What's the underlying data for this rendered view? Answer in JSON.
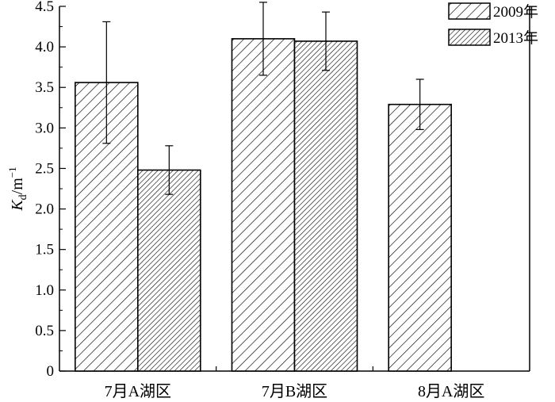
{
  "chart_data": {
    "type": "bar",
    "categories": [
      "7月A湖区",
      "7月B湖区",
      "8月A湖区"
    ],
    "series": [
      {
        "name": "2009年",
        "values": [
          3.56,
          4.1,
          3.29
        ],
        "errors": [
          0.75,
          0.45,
          0.31
        ],
        "pattern": "sparse-diagonal"
      },
      {
        "name": "2013年",
        "values": [
          2.48,
          4.07,
          null
        ],
        "errors": [
          0.3,
          0.36,
          null
        ],
        "pattern": "dense-diagonal"
      }
    ],
    "ylabel": {
      "main": "K",
      "sub": "d",
      "unit": "/m",
      "sup": "−1"
    },
    "ylim": [
      0,
      4.5
    ],
    "yticks": [
      "0",
      "0.5",
      "1.0",
      "1.5",
      "2.0",
      "2.5",
      "3.0",
      "3.5",
      "4.0",
      "4.5"
    ],
    "grid": false,
    "legend_position": "top-right",
    "colors": {
      "bar_fill": "#ffffff",
      "stroke": "#000000"
    }
  }
}
